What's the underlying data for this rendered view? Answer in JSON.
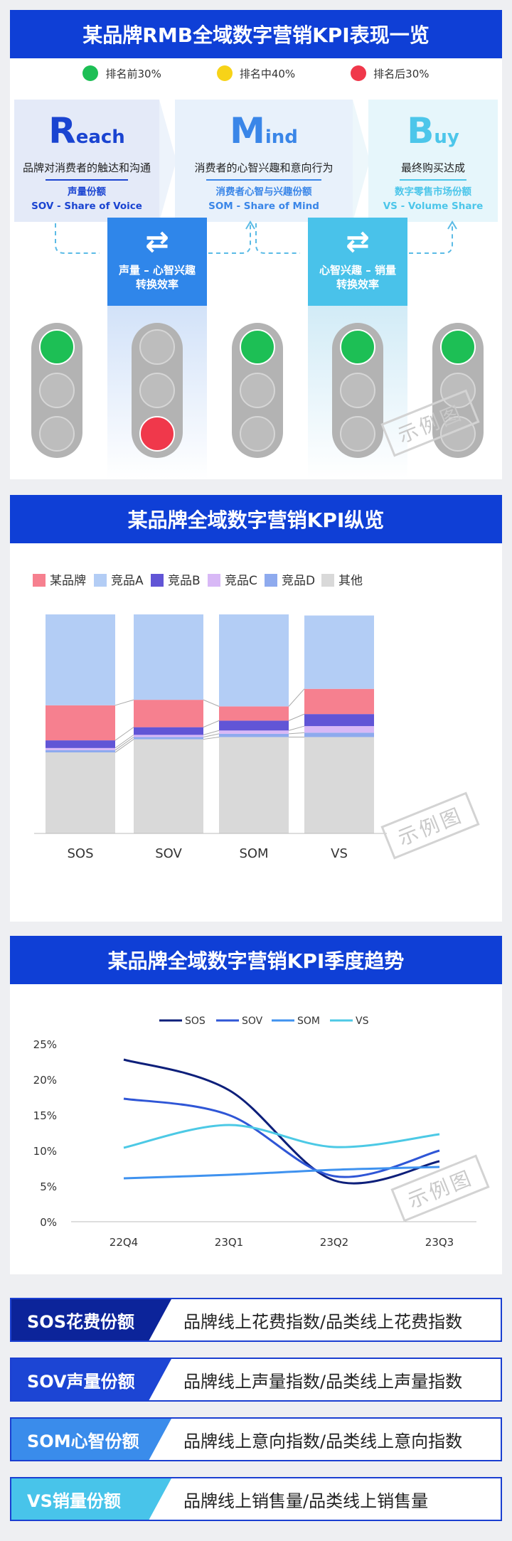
{
  "panel1": {
    "title": "某品牌RMB全域数字营销KPI表现一览",
    "legend": [
      {
        "label": "排名前30%",
        "color": "#1dbf55"
      },
      {
        "label": "排名中40%",
        "color": "#f7d318"
      },
      {
        "label": "排名后30%",
        "color": "#f0384b"
      }
    ],
    "stages": [
      {
        "big_first": "R",
        "big_rest": "each",
        "desc": "品牌对消费者的触达和沟通",
        "sub1": "声量份额",
        "sub2": "SOV - Share of Voice",
        "color": "#1a44d1"
      },
      {
        "big_first": "M",
        "big_rest": "ind",
        "desc": "消费者的心智兴趣和意向行为",
        "sub1": "消费者心智与兴趣份额",
        "sub2": "SOM - Share of Mind",
        "color": "#3a86e8"
      },
      {
        "big_first": "B",
        "big_rest": "uy",
        "desc": "最终购买达成",
        "sub1": "数字零售市场份额",
        "sub2": "VS - Volume Share",
        "color": "#4cc6ea"
      }
    ],
    "conversions": [
      {
        "icon": "swap-icon",
        "line1": "声量 – 心智兴趣",
        "line2": "转换效率"
      },
      {
        "icon": "swap-icon",
        "line1": "心智兴趣 – 销量",
        "line2": "转换效率"
      }
    ],
    "lights": [
      "green",
      "red",
      "green",
      "green",
      "green"
    ],
    "watermark": "示例图"
  },
  "panel2": {
    "title": "某品牌全域数字营销KPI纵览",
    "watermark": "示例图"
  },
  "panel3": {
    "title": "某品牌全域数字营销KPI季度趋势",
    "watermark": "示例图"
  },
  "chart_data": [
    {
      "type": "bar",
      "stacked": true,
      "categories": [
        "SOS",
        "SOV",
        "SOM",
        "VS"
      ],
      "ylim": [
        0,
        100
      ],
      "series": [
        {
          "name": "其他",
          "color": "#d9d9d9",
          "values": [
            37,
            43,
            44,
            44
          ]
        },
        {
          "name": "竞品D",
          "color": "#8eaaee",
          "values": [
            1,
            1,
            1.5,
            2
          ]
        },
        {
          "name": "竞品C",
          "color": "#d8b8f6",
          "values": [
            1,
            1,
            1.5,
            3
          ]
        },
        {
          "name": "竞品B",
          "color": "#6155d6",
          "values": [
            3.5,
            3.5,
            4.5,
            5.5
          ]
        },
        {
          "name": "某品牌",
          "color": "#f6808f",
          "values": [
            16,
            12.5,
            6.5,
            11.5
          ]
        },
        {
          "name": "竞品A",
          "color": "#b3cdf5",
          "values": [
            41.5,
            39,
            42,
            33.5
          ]
        }
      ],
      "legend_order": [
        "某品牌",
        "竞品A",
        "竞品B",
        "竞品C",
        "竞品D",
        "其他"
      ],
      "legend": "top",
      "grid": false
    },
    {
      "type": "line",
      "x": [
        "22Q4",
        "23Q1",
        "23Q2",
        "23Q3"
      ],
      "ylim": [
        0,
        25
      ],
      "yticks": [
        "0%",
        "5%",
        "10%",
        "15%",
        "20%",
        "25%"
      ],
      "series": [
        {
          "name": "SOS",
          "color": "#0d1f7a",
          "values": [
            22.8,
            18.5,
            5.8,
            8.5
          ]
        },
        {
          "name": "SOV",
          "color": "#2f56d6",
          "values": [
            17.3,
            15,
            6.4,
            10
          ]
        },
        {
          "name": "SOM",
          "color": "#3f92ef",
          "values": [
            6.1,
            6.6,
            7.3,
            7.7
          ]
        },
        {
          "name": "VS",
          "color": "#4cc9e5",
          "values": [
            10.4,
            13.6,
            10.5,
            12.3
          ]
        }
      ],
      "legend": "top",
      "grid": false
    }
  ],
  "kpis": [
    {
      "label": "SOS花费份额",
      "formula": "品牌线上花费指数/品类线上花费指数",
      "color": "#0c249a"
    },
    {
      "label": "SOV声量份额",
      "formula": "品牌线上声量指数/品类线上声量指数",
      "color": "#1c45d4"
    },
    {
      "label": "SOM心智份额",
      "formula": "品牌线上意向指数/品类线上意向指数",
      "color": "#3a8ceb"
    },
    {
      "label": "VS销量份额",
      "formula": "品牌线上销售量/品类线上销售量",
      "color": "#48c4ea"
    }
  ]
}
